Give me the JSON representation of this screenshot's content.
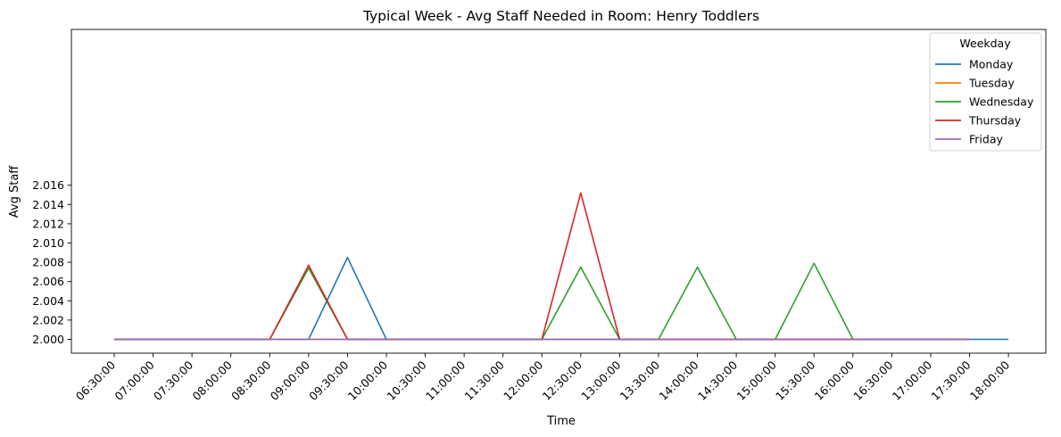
{
  "chart_data": {
    "type": "line",
    "title": "Typical Week - Avg Staff Needed in Room: Henry Toddlers",
    "xlabel": "Time",
    "ylabel": "Avg Staff",
    "ylim": [
      1.9994,
      2.016
    ],
    "yticks": [
      2.0,
      2.002,
      2.004,
      2.006,
      2.008,
      2.01,
      2.012,
      2.014,
      2.016
    ],
    "ytick_labels": [
      "2.000",
      "2.002",
      "2.004",
      "2.006",
      "2.008",
      "2.010",
      "2.012",
      "2.014",
      "2.016"
    ],
    "categories": [
      "06:30:00",
      "07:00:00",
      "07:30:00",
      "08:00:00",
      "08:30:00",
      "09:00:00",
      "09:30:00",
      "10:00:00",
      "10:30:00",
      "11:00:00",
      "11:30:00",
      "12:00:00",
      "12:30:00",
      "13:00:00",
      "13:30:00",
      "14:00:00",
      "14:30:00",
      "15:00:00",
      "15:30:00",
      "16:00:00",
      "16:30:00",
      "17:00:00",
      "17:30:00",
      "18:00:00"
    ],
    "legend": {
      "title": "Weekday",
      "position": "top-right"
    },
    "grid": false,
    "series": [
      {
        "name": "Monday",
        "color": "#1f77b4",
        "values": [
          2.0,
          2.0,
          2.0,
          2.0,
          2.0,
          2.0,
          2.0085,
          2.0,
          2.0,
          2.0,
          2.0,
          2.0,
          2.0,
          2.0,
          2.0,
          2.0,
          2.0,
          2.0,
          2.0,
          2.0,
          2.0,
          2.0,
          2.0,
          2.0
        ]
      },
      {
        "name": "Tuesday",
        "color": "#ff7f0e",
        "values": [
          2.0,
          2.0,
          2.0,
          2.0,
          2.0,
          2.0,
          2.0,
          2.0,
          2.0,
          2.0,
          2.0,
          2.0,
          2.0,
          2.0,
          2.0,
          2.0,
          2.0,
          2.0,
          2.0,
          2.0,
          2.0,
          2.0,
          2.0,
          null
        ]
      },
      {
        "name": "Wednesday",
        "color": "#2ca02c",
        "values": [
          2.0,
          2.0,
          2.0,
          2.0,
          2.0,
          2.0074,
          2.0,
          2.0,
          2.0,
          2.0,
          2.0,
          2.0,
          2.0075,
          2.0,
          2.0,
          2.0075,
          2.0,
          2.0,
          2.0079,
          2.0,
          2.0,
          2.0,
          2.0,
          null
        ]
      },
      {
        "name": "Thursday",
        "color": "#d62728",
        "values": [
          2.0,
          2.0,
          2.0,
          2.0,
          2.0,
          2.0077,
          2.0,
          2.0,
          2.0,
          2.0,
          2.0,
          2.0,
          2.0152,
          2.0,
          2.0,
          2.0,
          2.0,
          2.0,
          2.0,
          2.0,
          2.0,
          2.0,
          2.0,
          null
        ]
      },
      {
        "name": "Friday",
        "color": "#9467bd",
        "values": [
          2.0,
          2.0,
          2.0,
          2.0,
          2.0,
          2.0,
          2.0,
          2.0,
          2.0,
          2.0,
          2.0,
          2.0,
          2.0,
          2.0,
          2.0,
          2.0,
          2.0,
          2.0,
          2.0,
          2.0,
          2.0,
          2.0,
          2.0,
          null
        ]
      }
    ]
  }
}
